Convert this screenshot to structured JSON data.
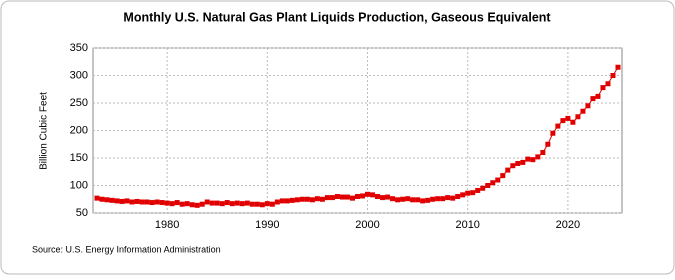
{
  "chart_data": {
    "type": "line",
    "title": "Monthly U.S. Natural Gas Plant Liquids Production, Gaseous Equivalent",
    "y_label": "Billion Cubic Feet",
    "source": "Source: U.S. Energy Information Administration",
    "color": "#e00000",
    "grid": true,
    "x": [
      1973,
      1973.5,
      1974,
      1974.5,
      1975,
      1975.5,
      1976,
      1976.5,
      1977,
      1977.5,
      1978,
      1978.5,
      1979,
      1979.5,
      1980,
      1980.5,
      1981,
      1981.5,
      1982,
      1982.5,
      1983,
      1983.5,
      1984,
      1984.5,
      1985,
      1985.5,
      1986,
      1986.5,
      1987,
      1987.5,
      1988,
      1988.5,
      1989,
      1989.5,
      1990,
      1990.5,
      1991,
      1991.5,
      1992,
      1992.5,
      1993,
      1993.5,
      1994,
      1994.5,
      1995,
      1995.5,
      1996,
      1996.5,
      1997,
      1997.5,
      1998,
      1998.5,
      1999,
      1999.5,
      2000,
      2000.5,
      2001,
      2001.5,
      2002,
      2002.5,
      2003,
      2003.5,
      2004,
      2004.5,
      2005,
      2005.5,
      2006,
      2006.5,
      2007,
      2007.5,
      2008,
      2008.5,
      2009,
      2009.5,
      2010,
      2010.5,
      2011,
      2011.5,
      2012,
      2012.5,
      2013,
      2013.5,
      2014,
      2014.5,
      2015,
      2015.5,
      2016,
      2016.5,
      2017,
      2017.5,
      2018,
      2018.5,
      2019,
      2019.5,
      2020,
      2020.5,
      2021,
      2021.5,
      2022,
      2022.5,
      2023,
      2023.5,
      2024,
      2024.5,
      2025
    ],
    "values": [
      77,
      75,
      74,
      73,
      72,
      71,
      72,
      70,
      71,
      70,
      70,
      69,
      70,
      69,
      68,
      67,
      69,
      66,
      67,
      65,
      64,
      66,
      70,
      68,
      68,
      67,
      69,
      67,
      68,
      67,
      68,
      66,
      66,
      65,
      67,
      66,
      70,
      72,
      72,
      73,
      74,
      75,
      75,
      74,
      76,
      75,
      78,
      78,
      80,
      79,
      79,
      77,
      80,
      81,
      84,
      83,
      80,
      78,
      79,
      76,
      74,
      75,
      76,
      74,
      74,
      72,
      73,
      75,
      76,
      76,
      78,
      77,
      80,
      83,
      86,
      87,
      91,
      95,
      100,
      105,
      110,
      118,
      128,
      136,
      140,
      142,
      148,
      147,
      152,
      160,
      175,
      195,
      208,
      218,
      222,
      215,
      225,
      235,
      245,
      258,
      262,
      278,
      285,
      300,
      315
    ],
    "xlim": [
      1972.6,
      2025.4
    ],
    "xticks": [
      1980,
      1990,
      2000,
      2010,
      2020
    ],
    "ylim": [
      50,
      350
    ],
    "yticks": [
      50,
      100,
      150,
      200,
      250,
      300,
      350
    ]
  }
}
